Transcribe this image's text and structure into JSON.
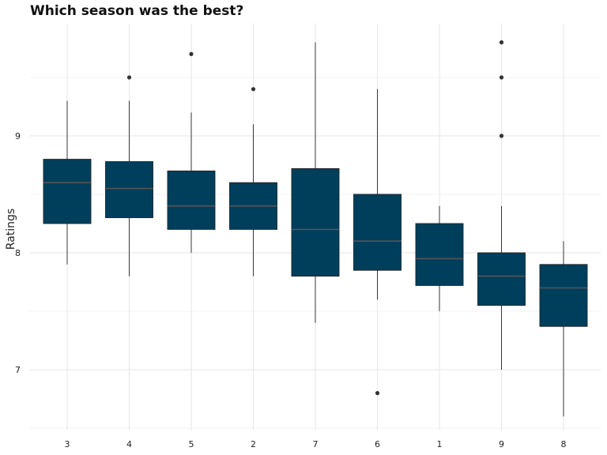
{
  "chart_data": {
    "type": "boxplot",
    "title": "Which season was the best?",
    "xlabel": "",
    "ylabel": "Ratings",
    "ylim": [
      6.5,
      9.95
    ],
    "yticks": [
      7,
      8,
      9
    ],
    "grid": true,
    "legend": "none",
    "box_color": "#003f5c",
    "median_color": "#555555",
    "categories": [
      "3",
      "4",
      "5",
      "2",
      "7",
      "6",
      "1",
      "9",
      "8"
    ],
    "boxes": [
      {
        "season": "3",
        "whisker_low": 7.9,
        "q1": 8.25,
        "median": 8.6,
        "q3": 8.8,
        "whisker_high": 9.3,
        "outliers": []
      },
      {
        "season": "4",
        "whisker_low": 7.8,
        "q1": 8.3,
        "median": 8.55,
        "q3": 8.78,
        "whisker_high": 9.3,
        "outliers": [
          9.5
        ]
      },
      {
        "season": "5",
        "whisker_low": 8.0,
        "q1": 8.2,
        "median": 8.4,
        "q3": 8.7,
        "whisker_high": 9.2,
        "outliers": [
          9.7
        ]
      },
      {
        "season": "2",
        "whisker_low": 7.8,
        "q1": 8.2,
        "median": 8.4,
        "q3": 8.6,
        "whisker_high": 9.1,
        "outliers": [
          9.4
        ]
      },
      {
        "season": "7",
        "whisker_low": 7.4,
        "q1": 7.8,
        "median": 8.2,
        "q3": 8.72,
        "whisker_high": 9.8,
        "outliers": []
      },
      {
        "season": "6",
        "whisker_low": 7.6,
        "q1": 7.85,
        "median": 8.1,
        "q3": 8.5,
        "whisker_high": 9.4,
        "outliers": [
          6.8
        ]
      },
      {
        "season": "1",
        "whisker_low": 7.5,
        "q1": 7.72,
        "median": 7.95,
        "q3": 8.25,
        "whisker_high": 8.4,
        "outliers": []
      },
      {
        "season": "9",
        "whisker_low": 7.0,
        "q1": 7.55,
        "median": 7.8,
        "q3": 8.0,
        "whisker_high": 8.4,
        "outliers": [
          9.0,
          9.5,
          9.8
        ]
      },
      {
        "season": "8",
        "whisker_low": 6.6,
        "q1": 7.37,
        "median": 7.7,
        "q3": 7.9,
        "whisker_high": 8.1,
        "outliers": []
      }
    ]
  }
}
